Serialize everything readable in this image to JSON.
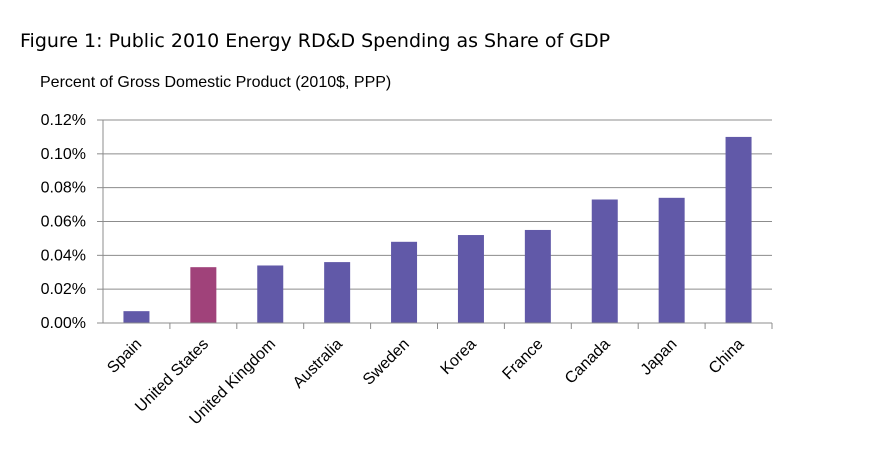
{
  "chart_data": {
    "type": "bar",
    "title": "Figure 1: Public 2010 Energy RD&D Spending as Share of GDP",
    "ylabel": "Percent of Gross Domestic Product (2010$, PPP)",
    "xlabel": "",
    "categories": [
      "Spain",
      "United States",
      "United Kingdom",
      "Australia",
      "Sweden",
      "Korea",
      "France",
      "Canada",
      "Japan",
      "China"
    ],
    "values": [
      0.007,
      0.033,
      0.034,
      0.036,
      0.048,
      0.052,
      0.055,
      0.073,
      0.074,
      0.11
    ],
    "ylim": [
      0,
      0.12
    ],
    "yticks": [
      "0.00%",
      "0.02%",
      "0.04%",
      "0.06%",
      "0.08%",
      "0.10%",
      "0.12%"
    ],
    "grid": true,
    "bar_color": "#6159a8",
    "highlight_color": "#a0427a",
    "highlight_category": "United States"
  }
}
